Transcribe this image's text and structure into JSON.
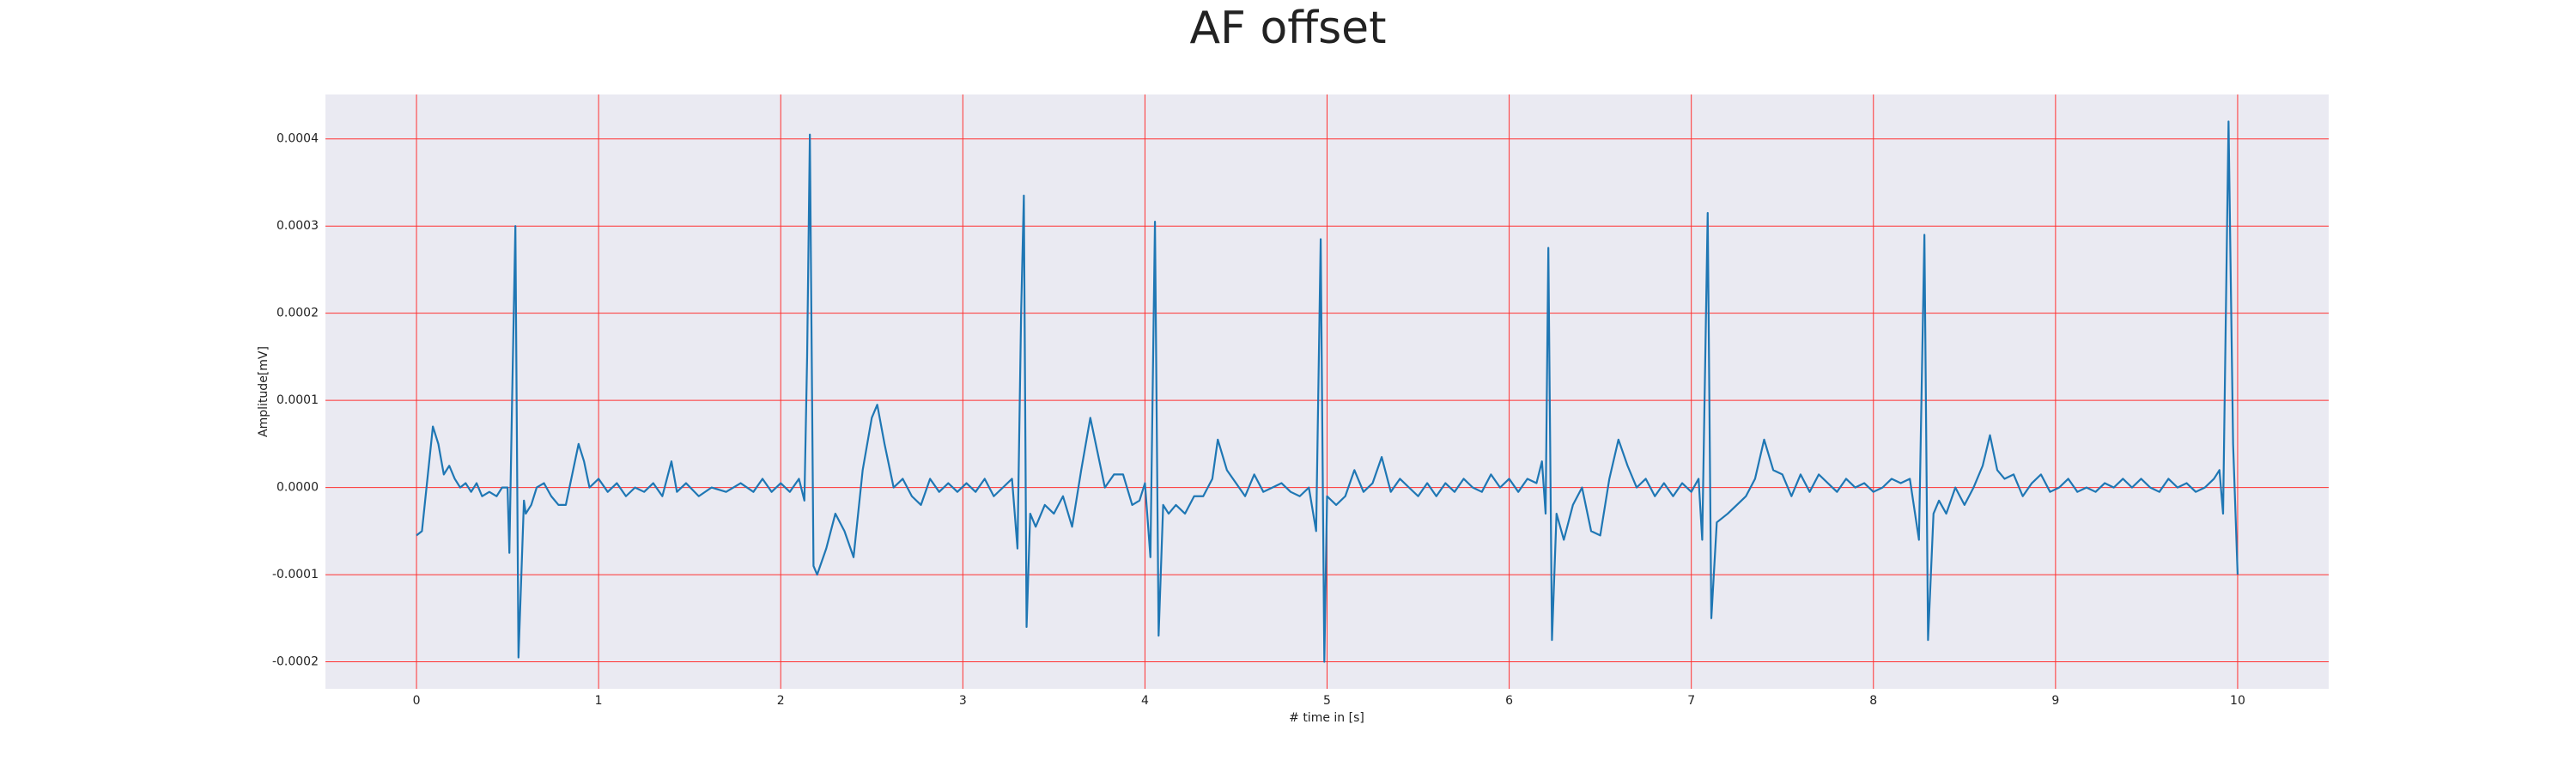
{
  "chart_data": {
    "type": "line",
    "title": "AF offset",
    "xlabel": "# time in [s]",
    "ylabel": "Amplitude[mV]",
    "color": "#1f77b4",
    "grid": true,
    "xlim": [
      -0.5,
      10.5
    ],
    "ylim": [
      -0.000231,
      0.000451
    ],
    "xticks": [
      0,
      1,
      2,
      3,
      4,
      5,
      6,
      7,
      8,
      9,
      10
    ],
    "yticks": [
      -0.0002,
      -0.0001,
      {
        "value": 0,
        "label": "0.0000"
      },
      0.0001,
      0.0002,
      0.0003,
      0.0004
    ],
    "x": [
      0.0,
      0.03,
      0.06,
      0.09,
      0.12,
      0.15,
      0.18,
      0.21,
      0.24,
      0.27,
      0.3,
      0.33,
      0.36,
      0.4,
      0.44,
      0.47,
      0.5,
      0.51,
      0.525,
      0.543,
      0.56,
      0.59,
      0.6,
      0.63,
      0.66,
      0.7,
      0.74,
      0.78,
      0.82,
      0.85,
      0.89,
      0.92,
      0.95,
      1.0,
      1.05,
      1.1,
      1.15,
      1.2,
      1.25,
      1.3,
      1.35,
      1.4,
      1.43,
      1.48,
      1.55,
      1.62,
      1.7,
      1.78,
      1.85,
      1.9,
      1.95,
      2.0,
      2.05,
      2.1,
      2.13,
      2.145,
      2.16,
      2.18,
      2.2,
      2.25,
      2.3,
      2.35,
      2.4,
      2.45,
      2.5,
      2.53,
      2.57,
      2.62,
      2.67,
      2.72,
      2.77,
      2.82,
      2.87,
      2.92,
      2.97,
      3.02,
      3.07,
      3.12,
      3.17,
      3.22,
      3.27,
      3.3,
      3.32,
      3.335,
      3.35,
      3.37,
      3.4,
      3.45,
      3.5,
      3.55,
      3.6,
      3.65,
      3.7,
      3.74,
      3.78,
      3.83,
      3.88,
      3.93,
      3.97,
      4.0,
      4.03,
      4.055,
      4.075,
      4.1,
      4.13,
      4.17,
      4.22,
      4.27,
      4.32,
      4.37,
      4.4,
      4.45,
      4.5,
      4.55,
      4.6,
      4.65,
      4.7,
      4.75,
      4.8,
      4.85,
      4.9,
      4.94,
      4.965,
      4.985,
      5.0,
      5.05,
      5.1,
      5.15,
      5.2,
      5.25,
      5.3,
      5.35,
      5.4,
      5.45,
      5.5,
      5.55,
      5.6,
      5.65,
      5.7,
      5.75,
      5.8,
      5.85,
      5.9,
      5.95,
      6.0,
      6.05,
      6.1,
      6.15,
      6.18,
      6.2,
      6.215,
      6.235,
      6.26,
      6.3,
      6.35,
      6.4,
      6.45,
      6.5,
      6.55,
      6.6,
      6.65,
      6.7,
      6.75,
      6.8,
      6.85,
      6.9,
      6.95,
      7.0,
      7.04,
      7.06,
      7.09,
      7.11,
      7.14,
      7.2,
      7.25,
      7.3,
      7.35,
      7.4,
      7.45,
      7.5,
      7.55,
      7.6,
      7.65,
      7.7,
      7.75,
      7.8,
      7.85,
      7.9,
      7.95,
      8.0,
      8.05,
      8.1,
      8.15,
      8.2,
      8.25,
      8.28,
      8.3,
      8.33,
      8.36,
      8.4,
      8.45,
      8.5,
      8.55,
      8.6,
      8.64,
      8.68,
      8.72,
      8.77,
      8.82,
      8.87,
      8.92,
      8.97,
      9.02,
      9.07,
      9.12,
      9.17,
      9.22,
      9.27,
      9.32,
      9.37,
      9.42,
      9.47,
      9.52,
      9.57,
      9.62,
      9.67,
      9.72,
      9.77,
      9.82,
      9.87,
      9.9,
      9.92,
      9.95,
      9.975,
      10.0
    ],
    "values": [
      -5.5e-05,
      -5e-05,
      1e-05,
      7e-05,
      5e-05,
      1.5e-05,
      2.5e-05,
      1e-05,
      0.0,
      5e-06,
      -5e-06,
      5e-06,
      -1e-05,
      -5e-06,
      -1e-05,
      0.0,
      0.0,
      -7.5e-05,
      0.0001,
      0.0003,
      -0.000195,
      -1.5e-05,
      -3e-05,
      -2e-05,
      0.0,
      5e-06,
      -1e-05,
      -2e-05,
      -2e-05,
      1e-05,
      5e-05,
      3e-05,
      0.0,
      1e-05,
      -5e-06,
      5e-06,
      -1e-05,
      0.0,
      -5e-06,
      5e-06,
      -1e-05,
      3e-05,
      -5e-06,
      5e-06,
      -1e-05,
      0.0,
      -5e-06,
      5e-06,
      -5e-06,
      1e-05,
      -5e-06,
      5e-06,
      -5e-06,
      1e-05,
      -1.5e-05,
      0.00015,
      0.000405,
      -9e-05,
      -0.0001,
      -7e-05,
      -3e-05,
      -5e-05,
      -8e-05,
      2e-05,
      8e-05,
      9.5e-05,
      5e-05,
      0.0,
      1e-05,
      -1e-05,
      -2e-05,
      1e-05,
      -5e-06,
      5e-06,
      -5e-06,
      5e-06,
      -5e-06,
      1e-05,
      -1e-05,
      0.0,
      1e-05,
      -7e-05,
      0.0002,
      0.000335,
      -0.00016,
      -3e-05,
      -4.5e-05,
      -2e-05,
      -3e-05,
      -1e-05,
      -4.5e-05,
      2e-05,
      8e-05,
      4e-05,
      0.0,
      1.5e-05,
      1.5e-05,
      -2e-05,
      -1.5e-05,
      5e-06,
      -8e-05,
      0.000305,
      -0.00017,
      -2e-05,
      -3e-05,
      -2e-05,
      -3e-05,
      -1e-05,
      -1e-05,
      1e-05,
      5.5e-05,
      2e-05,
      5e-06,
      -1e-05,
      1.5e-05,
      -5e-06,
      0.0,
      5e-06,
      -5e-06,
      -1e-05,
      0.0,
      -5e-05,
      0.000285,
      -0.0002,
      -1e-05,
      -2e-05,
      -1e-05,
      2e-05,
      -5e-06,
      5e-06,
      3.5e-05,
      -5e-06,
      1e-05,
      0.0,
      -1e-05,
      5e-06,
      -1e-05,
      5e-06,
      -5e-06,
      1e-05,
      0.0,
      -5e-06,
      1.5e-05,
      0.0,
      1e-05,
      -5e-06,
      1e-05,
      5e-06,
      3e-05,
      -3e-05,
      0.000275,
      -0.000175,
      -3e-05,
      -6e-05,
      -2e-05,
      0.0,
      -5e-05,
      -5.5e-05,
      1e-05,
      5.5e-05,
      2.5e-05,
      0.0,
      1e-05,
      -1e-05,
      5e-06,
      -1e-05,
      5e-06,
      -5e-06,
      1e-05,
      -6e-05,
      0.000315,
      -0.00015,
      -4e-05,
      -3e-05,
      -2e-05,
      -1e-05,
      1e-05,
      5.5e-05,
      2e-05,
      1.5e-05,
      -1e-05,
      1.5e-05,
      -5e-06,
      1.5e-05,
      5e-06,
      -5e-06,
      1e-05,
      0.0,
      5e-06,
      -5e-06,
      0.0,
      1e-05,
      5e-06,
      1e-05,
      -6e-05,
      0.00029,
      -0.000175,
      -3e-05,
      -1.5e-05,
      -3e-05,
      0.0,
      -2e-05,
      0.0,
      2.5e-05,
      6e-05,
      2e-05,
      1e-05,
      1.5e-05,
      -1e-05,
      5e-06,
      1.5e-05,
      -5e-06,
      0.0,
      1e-05,
      -5e-06,
      0.0,
      -5e-06,
      5e-06,
      0.0,
      1e-05,
      0.0,
      1e-05,
      0.0,
      -5e-06,
      1e-05,
      0.0,
      5e-06,
      -5e-06,
      0.0,
      1e-05,
      2e-05,
      -3e-05,
      0.00042,
      5e-05,
      -0.0001
    ]
  }
}
